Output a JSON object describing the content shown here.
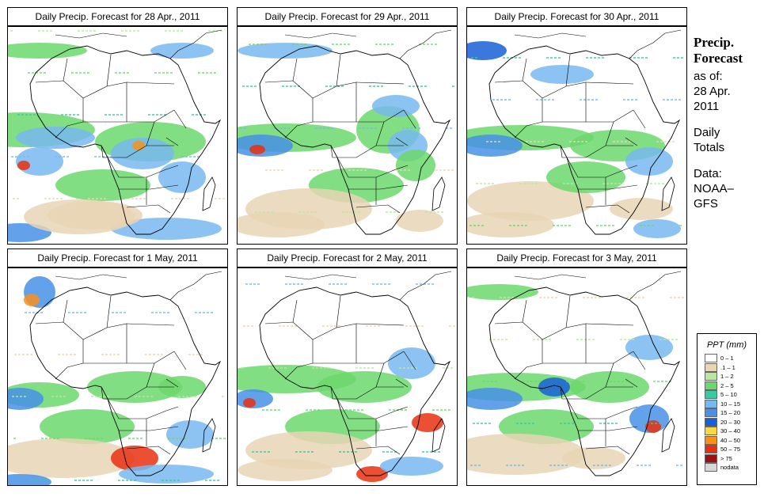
{
  "panels": [
    {
      "title": "Daily Precip. Forecast for  28 Apr., 2011"
    },
    {
      "title": "Daily Precip. Forecast for  29 Apr., 2011"
    },
    {
      "title": "Daily Precip. Forecast for  30 Apr., 2011"
    },
    {
      "title": "Daily Precip. Forecast for  1 May, 2011"
    },
    {
      "title": "Daily Precip. Forecast for  2 May, 2011"
    },
    {
      "title": "Daily Precip. Forecast for  3 May, 2011"
    }
  ],
  "sidebar": {
    "heading_line1": "Precip.",
    "heading_line2": "Forecast",
    "asof": "as of:",
    "date_line1": "28 Apr.",
    "date_line2": "2011",
    "totals_line1": "Daily",
    "totals_line2": "Totals",
    "data_line1": "Data:",
    "data_line2": "NOAA–",
    "data_line3": "GFS"
  },
  "legend": {
    "title": "PPT (mm)",
    "items": [
      {
        "label": "0 – 1",
        "color": "#ffffff"
      },
      {
        "label": ".1 – 1",
        "color": "#e8d5b5"
      },
      {
        "label": "1 – 2",
        "color": "#b8e8a0"
      },
      {
        "label": "2 – 5",
        "color": "#6cd86c"
      },
      {
        "label": "5 – 10",
        "color": "#3cc8a0"
      },
      {
        "label": "10 – 15",
        "color": "#78b8f0"
      },
      {
        "label": "15 – 20",
        "color": "#4890e8"
      },
      {
        "label": "20 – 30",
        "color": "#1860d8"
      },
      {
        "label": "30 – 40",
        "color": "#f8d848"
      },
      {
        "label": "40 – 50",
        "color": "#f89020"
      },
      {
        "label": "50 – 75",
        "color": "#e83010"
      },
      {
        "label": "> 75",
        "color": "#a01010"
      },
      {
        "label": "nodata",
        "color": "#d8d8d8"
      }
    ]
  }
}
